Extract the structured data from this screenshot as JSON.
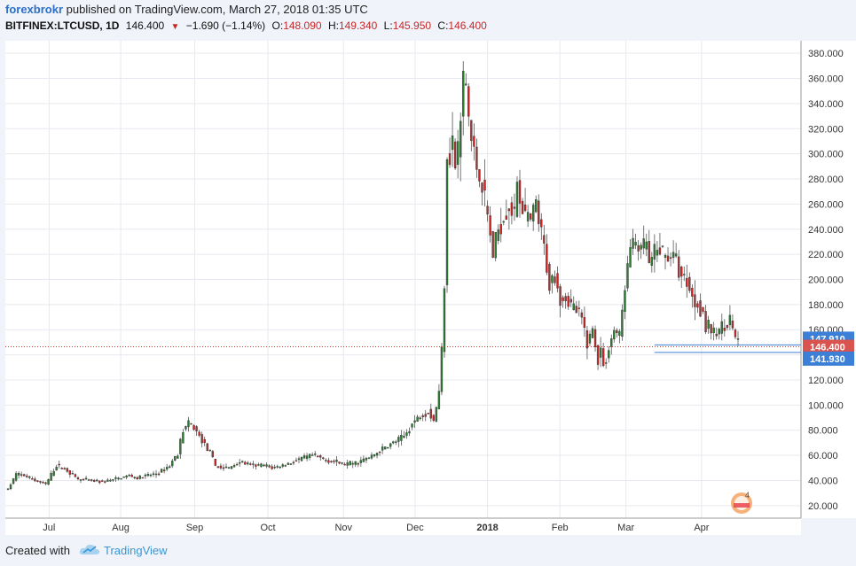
{
  "header": {
    "author": "forexbrokr",
    "published_text": "published on TradingView.com, March 27, 2018 01:35 UTC",
    "symbol": "BITFINEX:LTCUSD, 1D",
    "last": "146.400",
    "change": "−1.690 (−1.14%)",
    "o_label": "O:",
    "o": "148.090",
    "h_label": "H:",
    "h": "149.340",
    "l_label": "L:",
    "l": "145.950",
    "c_label": "C:",
    "c": "146.400"
  },
  "footer": {
    "created_with": "Created with",
    "brand": "TradingView"
  },
  "colors": {
    "up": "#2e7d32",
    "down": "#c62828",
    "bg": "#ffffff",
    "grid": "#e6e9ef",
    "blue_label": "#3c7fd6",
    "red_label": "#d9534f"
  },
  "chart_data": {
    "type": "candlestick",
    "ylim": [
      10,
      390
    ],
    "y_ticks": [
      "20.000",
      "40.000",
      "60.000",
      "80.000",
      "100.000",
      "120.000",
      "140.000",
      "160.000",
      "180.000",
      "200.000",
      "220.000",
      "240.000",
      "260.000",
      "280.000",
      "300.000",
      "320.000",
      "340.000",
      "360.000",
      "380.000"
    ],
    "x_ticks": [
      "Jul",
      "Aug",
      "Sep",
      "Oct",
      "Nov",
      "Dec",
      "2018",
      "Feb",
      "Mar",
      "Apr"
    ],
    "price_labels": [
      {
        "text": "147.910",
        "value": 147.91,
        "color": "#3c7fd6"
      },
      {
        "text": "146.400",
        "value": 146.4,
        "color": "#d9534f"
      },
      {
        "text": "141.930",
        "value": 141.93,
        "color": "#3c7fd6"
      }
    ],
    "last_price": 146.4,
    "support_lines": [
      147.91,
      141.93
    ],
    "watermark_count": "4",
    "keyframes": [
      [
        0,
        33
      ],
      [
        3,
        45
      ],
      [
        6,
        44
      ],
      [
        10,
        40
      ],
      [
        14,
        37
      ],
      [
        18,
        52
      ],
      [
        22,
        48
      ],
      [
        26,
        41
      ],
      [
        30,
        40
      ],
      [
        35,
        39
      ],
      [
        40,
        41
      ],
      [
        45,
        44
      ],
      [
        48,
        42
      ],
      [
        52,
        44
      ],
      [
        56,
        46
      ],
      [
        60,
        52
      ],
      [
        63,
        62
      ],
      [
        65,
        80
      ],
      [
        67,
        85
      ],
      [
        69,
        82
      ],
      [
        72,
        72
      ],
      [
        75,
        62
      ],
      [
        77,
        52
      ],
      [
        79,
        50
      ],
      [
        82,
        50
      ],
      [
        86,
        55
      ],
      [
        90,
        52
      ],
      [
        95,
        52
      ],
      [
        98,
        50
      ],
      [
        102,
        52
      ],
      [
        106,
        55
      ],
      [
        110,
        58
      ],
      [
        113,
        60
      ],
      [
        117,
        57
      ],
      [
        121,
        55
      ],
      [
        125,
        53
      ],
      [
        129,
        54
      ],
      [
        134,
        58
      ],
      [
        139,
        65
      ],
      [
        143,
        70
      ],
      [
        147,
        75
      ],
      [
        150,
        85
      ],
      [
        153,
        92
      ],
      [
        156,
        95
      ],
      [
        158,
        88
      ],
      [
        160,
        110
      ],
      [
        161,
        145
      ],
      [
        162,
        200
      ],
      [
        163,
        300
      ],
      [
        164,
        300
      ],
      [
        165,
        310
      ],
      [
        166,
        290
      ],
      [
        167,
        305
      ],
      [
        168,
        325
      ],
      [
        169,
        360
      ],
      [
        170,
        355
      ],
      [
        171,
        330
      ],
      [
        172,
        310
      ],
      [
        174,
        290
      ],
      [
        176,
        275
      ],
      [
        178,
        250
      ],
      [
        180,
        220
      ],
      [
        182,
        240
      ],
      [
        184,
        250
      ],
      [
        186,
        260
      ],
      [
        188,
        250
      ],
      [
        189,
        280
      ],
      [
        190,
        265
      ],
      [
        192,
        250
      ],
      [
        194,
        245
      ],
      [
        196,
        260
      ],
      [
        197,
        245
      ],
      [
        199,
        225
      ],
      [
        201,
        195
      ],
      [
        203,
        205
      ],
      [
        205,
        185
      ],
      [
        207,
        185
      ],
      [
        209,
        180
      ],
      [
        211,
        175
      ],
      [
        213,
        168
      ],
      [
        215,
        150
      ],
      [
        217,
        160
      ],
      [
        218,
        148
      ],
      [
        219,
        135
      ],
      [
        220,
        145
      ],
      [
        221,
        130
      ],
      [
        223,
        145
      ],
      [
        225,
        160
      ],
      [
        227,
        155
      ],
      [
        229,
        195
      ],
      [
        231,
        225
      ],
      [
        233,
        230
      ],
      [
        235,
        222
      ],
      [
        237,
        230
      ],
      [
        238,
        210
      ],
      [
        240,
        220
      ],
      [
        242,
        225
      ],
      [
        244,
        218
      ],
      [
        246,
        220
      ],
      [
        248,
        215
      ],
      [
        250,
        202
      ],
      [
        252,
        200
      ],
      [
        254,
        185
      ],
      [
        256,
        180
      ],
      [
        258,
        175
      ],
      [
        259,
        160
      ],
      [
        260,
        165
      ],
      [
        262,
        155
      ],
      [
        264,
        160
      ],
      [
        266,
        165
      ],
      [
        268,
        168
      ],
      [
        270,
        155
      ],
      [
        271,
        147
      ]
    ],
    "total_candles": 272
  }
}
